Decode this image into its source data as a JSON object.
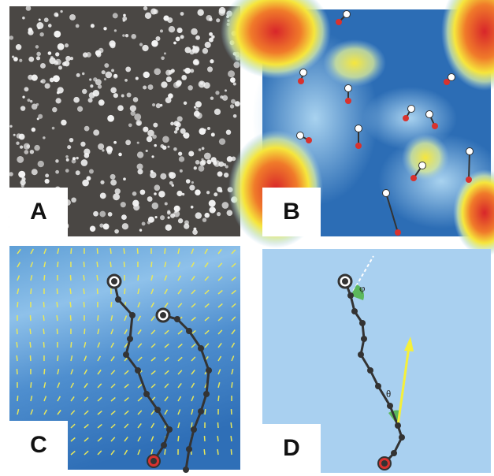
{
  "panels": [
    {
      "label": "A"
    },
    {
      "label": "B"
    },
    {
      "label": "C"
    },
    {
      "label": "D"
    }
  ],
  "annotations": {
    "phi": "φ",
    "theta": "θ"
  }
}
